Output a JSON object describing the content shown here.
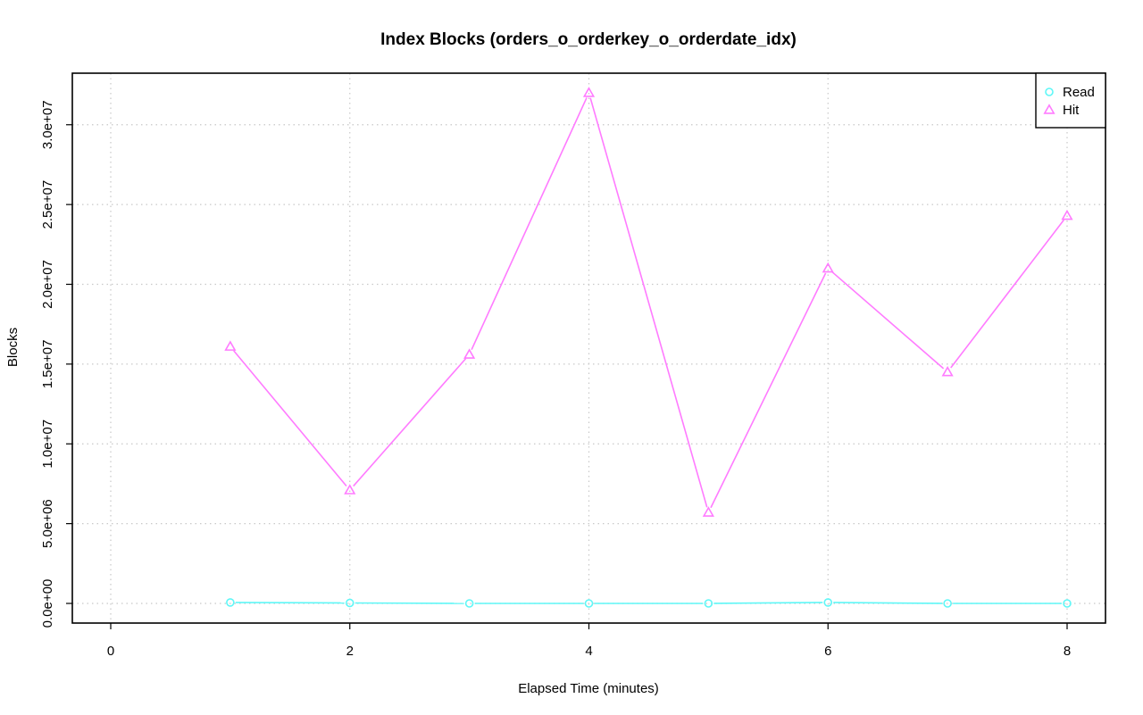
{
  "chart_data": {
    "type": "line",
    "title": "Index Blocks (orders_o_orderkey_o_orderdate_idx)",
    "xlabel": "Elapsed Time (minutes)",
    "ylabel": "Blocks",
    "xlim": [
      0,
      8
    ],
    "ylim": [
      0,
      32000000
    ],
    "x_ticks": [
      0,
      2,
      4,
      6,
      8
    ],
    "x_tick_labels": [
      "0",
      "2",
      "4",
      "6",
      "8"
    ],
    "y_ticks": [
      0,
      5000000,
      10000000,
      15000000,
      20000000,
      25000000,
      30000000
    ],
    "y_tick_labels": [
      "0.0e+00",
      "5.0e+06",
      "1.0e+07",
      "1.5e+07",
      "2.0e+07",
      "2.5e+07",
      "3.0e+07"
    ],
    "grid": true,
    "legend_position": "top-right",
    "x": [
      1,
      2,
      3,
      4,
      5,
      6,
      7,
      8
    ],
    "series": [
      {
        "name": "Read",
        "marker": "circle",
        "color": "#5ff7f7",
        "values": [
          60000,
          30000,
          0,
          0,
          0,
          60000,
          0,
          0
        ]
      },
      {
        "name": "Hit",
        "marker": "triangle",
        "color": "#ff7bff",
        "values": [
          16100000,
          7100000,
          15600000,
          32000000,
          5700000,
          21000000,
          14500000,
          24300000
        ]
      }
    ]
  }
}
